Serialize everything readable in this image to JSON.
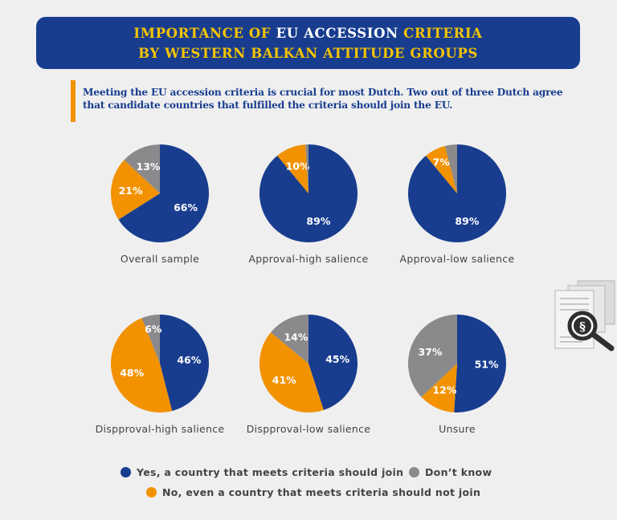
{
  "title": {
    "line1": [
      {
        "text": "IMPORTANCE OF ",
        "color": "yellow"
      },
      {
        "text": "EU ACCESSION ",
        "color": "white"
      },
      {
        "text": "CRITERIA",
        "color": "yellow"
      }
    ],
    "line2": "BY WESTERN BALKAN ATTITUDE GROUPS"
  },
  "subtitle": "Meeting the EU accession criteria is crucial for most Dutch. Two out of three Dutch agree that candidate countries that fulfilled the criteria should join the EU.",
  "colors": {
    "yes": "#183d8f",
    "no": "#f29200",
    "dont_know": "#8a8a8c",
    "accent_yellow": "#f5c400"
  },
  "chart_data": {
    "type": "pie",
    "series_keys": [
      "yes",
      "no",
      "dont_know"
    ],
    "legend": {
      "yes": "Yes, a country that meets criteria should join",
      "dont_know": "Don’t know",
      "no": "No, even a country that meets criteria should not join"
    },
    "charts": [
      {
        "label": "Overall sample",
        "values": {
          "yes": 66,
          "no": 21,
          "dont_know": 13
        },
        "labels": {
          "yes": "66%",
          "no": "21%",
          "dont_know": "13%"
        }
      },
      {
        "label": "Approval-high salience",
        "values": {
          "yes": 89,
          "no": 10,
          "dont_know": 1
        },
        "labels": {
          "yes": "89%",
          "no": "10%",
          "dont_know": ""
        }
      },
      {
        "label": "Approval-low salience",
        "values": {
          "yes": 89,
          "no": 7,
          "dont_know": 4
        },
        "labels": {
          "yes": "89%",
          "no": "7%",
          "dont_know": ""
        }
      },
      {
        "label": "Dispproval-high salience",
        "values": {
          "yes": 46,
          "no": 48,
          "dont_know": 6
        },
        "labels": {
          "yes": "46%",
          "no": "48%",
          "dont_know": "6%"
        }
      },
      {
        "label": "Dispproval-low salience",
        "values": {
          "yes": 45,
          "no": 41,
          "dont_know": 14
        },
        "labels": {
          "yes": "45%",
          "no": "41%",
          "dont_know": "14%"
        }
      },
      {
        "label": "Unsure",
        "values": {
          "yes": 51,
          "no": 12,
          "dont_know": 37
        },
        "labels": {
          "yes": "51%",
          "no": "12%",
          "dont_know": "37%"
        }
      }
    ]
  },
  "icon": "document-search-icon"
}
